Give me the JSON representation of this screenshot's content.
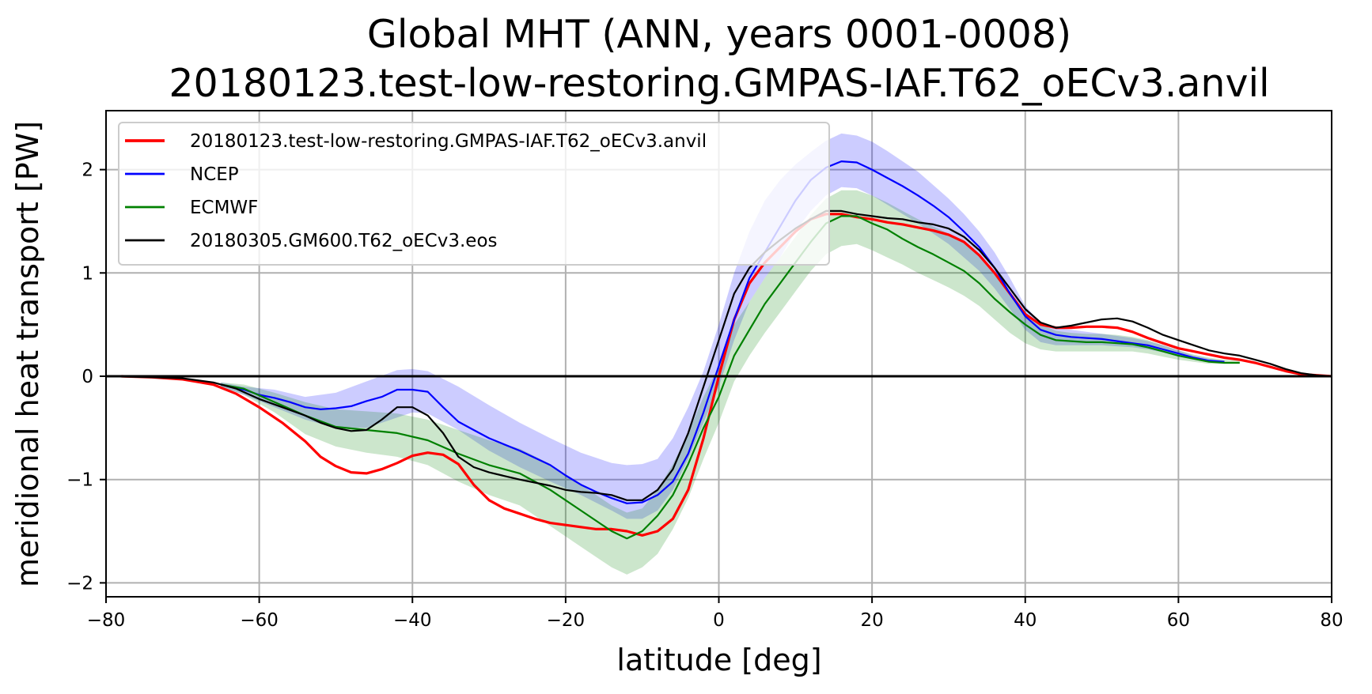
{
  "chart_data": {
    "type": "line",
    "title": "Global MHT (ANN, years 0001-0008)",
    "subtitle": "20180123.test-low-restoring.GMPAS-IAF.T62_oECv3.anvil",
    "xlabel": "latitude [deg]",
    "ylabel": "meridional heat transport [PW]",
    "xlim": [
      -80,
      80
    ],
    "ylim": [
      -2.15,
      2.6
    ],
    "xticks": [
      -80,
      -60,
      -40,
      -20,
      0,
      20,
      40,
      60,
      80
    ],
    "xtick_labels": [
      "−80",
      "−60",
      "−40",
      "−20",
      "0",
      "20",
      "40",
      "60",
      "80"
    ],
    "yticks": [
      -2,
      -1,
      0,
      1,
      2
    ],
    "ytick_labels": [
      "−2",
      "−1",
      "0",
      "1",
      "2"
    ],
    "grid": true,
    "zero_line": true,
    "legend_position": "top-left",
    "bands": [
      {
        "name": "NCEP uncertainty",
        "color": "#0000ff",
        "opacity": 0.2,
        "x": [
          -65,
          -62,
          -58,
          -54,
          -50,
          -46,
          -42,
          -40,
          -38,
          -34,
          -30,
          -26,
          -22,
          -18,
          -14,
          -12,
          -10,
          -8,
          -6,
          -4,
          -2,
          0,
          2,
          4,
          6,
          8,
          10,
          12,
          14,
          16,
          18,
          20,
          22,
          24,
          26,
          28,
          30,
          32,
          34,
          36,
          38,
          40,
          42,
          44,
          46,
          48,
          50,
          52,
          54,
          56,
          58,
          60,
          62,
          64,
          66
        ],
        "lower": [
          -0.1,
          -0.18,
          -0.3,
          -0.42,
          -0.5,
          -0.5,
          -0.4,
          -0.35,
          -0.36,
          -0.52,
          -0.72,
          -0.88,
          -1.02,
          -1.15,
          -1.3,
          -1.38,
          -1.38,
          -1.3,
          -1.1,
          -0.8,
          -0.45,
          -0.1,
          0.35,
          0.72,
          0.95,
          1.15,
          1.4,
          1.6,
          1.75,
          1.83,
          1.82,
          1.75,
          1.66,
          1.57,
          1.48,
          1.38,
          1.28,
          1.15,
          1.02,
          0.85,
          0.65,
          0.45,
          0.33,
          0.3,
          0.3,
          0.3,
          0.3,
          0.29,
          0.28,
          0.26,
          0.23,
          0.19,
          0.16,
          0.14,
          0.13
        ],
        "upper": [
          -0.06,
          -0.1,
          -0.13,
          -0.2,
          -0.16,
          -0.05,
          0.06,
          0.07,
          0.05,
          -0.1,
          -0.28,
          -0.45,
          -0.6,
          -0.74,
          -0.84,
          -0.86,
          -0.85,
          -0.8,
          -0.6,
          -0.3,
          0.05,
          0.5,
          1.0,
          1.4,
          1.7,
          1.9,
          2.05,
          2.17,
          2.28,
          2.35,
          2.33,
          2.27,
          2.18,
          2.08,
          1.98,
          1.85,
          1.72,
          1.57,
          1.4,
          1.2,
          0.95,
          0.68,
          0.52,
          0.47,
          0.45,
          0.43,
          0.41,
          0.39,
          0.37,
          0.34,
          0.3,
          0.25,
          0.2,
          0.17,
          0.15
        ]
      },
      {
        "name": "ECMWF uncertainty",
        "color": "#008000",
        "opacity": 0.2,
        "x": [
          -65,
          -62,
          -58,
          -54,
          -50,
          -46,
          -42,
          -38,
          -34,
          -30,
          -26,
          -22,
          -18,
          -14,
          -12,
          -10,
          -8,
          -6,
          -4,
          -2,
          0,
          2,
          4,
          6,
          8,
          10,
          12,
          14,
          16,
          18,
          20,
          22,
          24,
          26,
          28,
          30,
          32,
          34,
          36,
          38,
          40,
          42,
          44,
          46,
          48,
          50,
          52,
          54,
          56,
          58,
          60,
          62,
          64,
          66,
          68
        ],
        "lower": [
          -0.1,
          -0.18,
          -0.35,
          -0.56,
          -0.68,
          -0.74,
          -0.78,
          -0.86,
          -1.02,
          -1.15,
          -1.25,
          -1.45,
          -1.65,
          -1.85,
          -1.92,
          -1.85,
          -1.72,
          -1.48,
          -1.18,
          -0.8,
          -0.45,
          -0.05,
          0.2,
          0.42,
          0.62,
          0.82,
          1.02,
          1.18,
          1.26,
          1.28,
          1.22,
          1.15,
          1.08,
          1.0,
          0.93,
          0.86,
          0.78,
          0.68,
          0.55,
          0.42,
          0.32,
          0.26,
          0.24,
          0.24,
          0.24,
          0.24,
          0.24,
          0.24,
          0.22,
          0.19,
          0.16,
          0.14,
          0.12,
          0.12,
          0.12
        ],
        "upper": [
          -0.06,
          -0.08,
          -0.16,
          -0.25,
          -0.32,
          -0.34,
          -0.36,
          -0.42,
          -0.52,
          -0.62,
          -0.7,
          -0.85,
          -1.05,
          -1.25,
          -1.32,
          -1.28,
          -1.1,
          -0.85,
          -0.55,
          -0.2,
          0.1,
          0.5,
          0.72,
          0.95,
          1.15,
          1.35,
          1.56,
          1.72,
          1.8,
          1.8,
          1.75,
          1.68,
          1.6,
          1.52,
          1.45,
          1.38,
          1.3,
          1.15,
          0.98,
          0.8,
          0.62,
          0.5,
          0.44,
          0.42,
          0.41,
          0.41,
          0.4,
          0.38,
          0.35,
          0.3,
          0.25,
          0.21,
          0.18,
          0.16,
          0.15
        ]
      }
    ],
    "series": [
      {
        "name": "20180123.test-low-restoring.GMPAS-IAF.T62_oECv3.anvil",
        "color": "#ff0000",
        "width": 3.2,
        "x": [
          -78,
          -74,
          -70,
          -66,
          -63,
          -60,
          -57,
          -54,
          -52,
          -50,
          -48,
          -46,
          -44,
          -42,
          -40,
          -38,
          -36,
          -34,
          -32,
          -30,
          -28,
          -26,
          -24,
          -22,
          -20,
          -18,
          -16,
          -14,
          -12,
          -10,
          -8,
          -6,
          -4,
          -2,
          0,
          2,
          4,
          6,
          8,
          10,
          12,
          14,
          16,
          18,
          20,
          22,
          24,
          26,
          28,
          30,
          32,
          34,
          36,
          38,
          40,
          42,
          44,
          46,
          48,
          50,
          52,
          54,
          56,
          58,
          60,
          62,
          64,
          66,
          68,
          70,
          72,
          74,
          76,
          78,
          80
        ],
        "y": [
          0,
          -0.01,
          -0.03,
          -0.08,
          -0.17,
          -0.3,
          -0.45,
          -0.63,
          -0.78,
          -0.87,
          -0.93,
          -0.94,
          -0.9,
          -0.84,
          -0.77,
          -0.74,
          -0.76,
          -0.85,
          -1.05,
          -1.2,
          -1.28,
          -1.33,
          -1.38,
          -1.42,
          -1.44,
          -1.46,
          -1.48,
          -1.48,
          -1.5,
          -1.54,
          -1.5,
          -1.38,
          -1.1,
          -0.6,
          0.0,
          0.55,
          0.9,
          1.1,
          1.25,
          1.4,
          1.52,
          1.57,
          1.57,
          1.54,
          1.52,
          1.49,
          1.47,
          1.44,
          1.41,
          1.37,
          1.3,
          1.17,
          1.0,
          0.8,
          0.6,
          0.5,
          0.47,
          0.47,
          0.48,
          0.48,
          0.47,
          0.43,
          0.37,
          0.32,
          0.27,
          0.24,
          0.21,
          0.18,
          0.16,
          0.13,
          0.09,
          0.05,
          0.02,
          0.01,
          0
        ]
      },
      {
        "name": "NCEP",
        "color": "#0000ff",
        "width": 2.2,
        "x": [
          -65,
          -62,
          -60,
          -58,
          -56,
          -54,
          -52,
          -50,
          -48,
          -46,
          -44,
          -42,
          -40,
          -38,
          -36,
          -34,
          -32,
          -30,
          -28,
          -26,
          -24,
          -22,
          -20,
          -18,
          -16,
          -14,
          -12,
          -10,
          -8,
          -6,
          -4,
          -2,
          0,
          2,
          4,
          6,
          8,
          10,
          12,
          14,
          16,
          18,
          20,
          22,
          24,
          26,
          28,
          30,
          32,
          34,
          36,
          38,
          40,
          42,
          44,
          46,
          48,
          50,
          52,
          54,
          56,
          58,
          60,
          62,
          64,
          66
        ],
        "y": [
          -0.08,
          -0.13,
          -0.18,
          -0.21,
          -0.25,
          -0.3,
          -0.32,
          -0.31,
          -0.29,
          -0.24,
          -0.2,
          -0.13,
          -0.13,
          -0.15,
          -0.3,
          -0.44,
          -0.52,
          -0.6,
          -0.66,
          -0.72,
          -0.79,
          -0.86,
          -0.96,
          -1.05,
          -1.12,
          -1.18,
          -1.23,
          -1.22,
          -1.15,
          -1.02,
          -0.75,
          -0.35,
          0.1,
          0.55,
          0.95,
          1.2,
          1.45,
          1.7,
          1.9,
          2.02,
          2.08,
          2.07,
          2.0,
          1.92,
          1.84,
          1.75,
          1.65,
          1.54,
          1.4,
          1.25,
          1.05,
          0.8,
          0.58,
          0.45,
          0.4,
          0.38,
          0.37,
          0.36,
          0.34,
          0.32,
          0.3,
          0.26,
          0.22,
          0.18,
          0.15,
          0.14
        ]
      },
      {
        "name": "ECMWF",
        "color": "#008000",
        "width": 2.2,
        "x": [
          -65,
          -62,
          -58,
          -54,
          -50,
          -46,
          -42,
          -38,
          -34,
          -30,
          -26,
          -22,
          -18,
          -14,
          -12,
          -10,
          -8,
          -6,
          -4,
          -2,
          0,
          2,
          4,
          6,
          8,
          10,
          12,
          14,
          16,
          18,
          20,
          22,
          24,
          26,
          28,
          30,
          32,
          34,
          36,
          38,
          40,
          42,
          44,
          46,
          48,
          50,
          52,
          54,
          56,
          58,
          60,
          62,
          64,
          66,
          68
        ],
        "y": [
          -0.08,
          -0.12,
          -0.25,
          -0.38,
          -0.49,
          -0.52,
          -0.55,
          -0.62,
          -0.75,
          -0.86,
          -0.94,
          -1.1,
          -1.3,
          -1.5,
          -1.57,
          -1.5,
          -1.35,
          -1.15,
          -0.85,
          -0.5,
          -0.2,
          0.2,
          0.45,
          0.7,
          0.9,
          1.1,
          1.3,
          1.48,
          1.55,
          1.55,
          1.48,
          1.42,
          1.33,
          1.25,
          1.18,
          1.1,
          1.02,
          0.9,
          0.75,
          0.62,
          0.5,
          0.4,
          0.35,
          0.34,
          0.33,
          0.33,
          0.32,
          0.31,
          0.28,
          0.24,
          0.2,
          0.17,
          0.14,
          0.13,
          0.13
        ]
      },
      {
        "name": "20180305.GM600.T62_oECv3.eos",
        "color": "#000000",
        "width": 2.2,
        "x": [
          -80,
          -74,
          -70,
          -66,
          -63,
          -60,
          -57,
          -54,
          -52,
          -50,
          -48,
          -46,
          -44,
          -42,
          -40,
          -38,
          -36,
          -34,
          -32,
          -30,
          -26,
          -22,
          -20,
          -18,
          -16,
          -14,
          -12,
          -10,
          -8,
          -6,
          -4,
          -2,
          0,
          2,
          4,
          6,
          8,
          10,
          12,
          14,
          16,
          18,
          20,
          22,
          24,
          26,
          28,
          30,
          32,
          34,
          36,
          38,
          40,
          42,
          44,
          46,
          48,
          50,
          52,
          54,
          56,
          58,
          60,
          62,
          64,
          66,
          68,
          70,
          72,
          74,
          76,
          78,
          80
        ],
        "y": [
          0,
          -0.01,
          -0.02,
          -0.06,
          -0.12,
          -0.22,
          -0.3,
          -0.38,
          -0.45,
          -0.5,
          -0.53,
          -0.52,
          -0.42,
          -0.3,
          -0.3,
          -0.38,
          -0.55,
          -0.78,
          -0.88,
          -0.93,
          -1.0,
          -1.06,
          -1.1,
          -1.12,
          -1.13,
          -1.15,
          -1.2,
          -1.2,
          -1.1,
          -0.9,
          -0.55,
          -0.1,
          0.35,
          0.8,
          1.05,
          1.2,
          1.32,
          1.43,
          1.52,
          1.6,
          1.6,
          1.57,
          1.55,
          1.53,
          1.52,
          1.49,
          1.47,
          1.43,
          1.35,
          1.22,
          1.05,
          0.85,
          0.65,
          0.52,
          0.47,
          0.49,
          0.52,
          0.55,
          0.56,
          0.53,
          0.47,
          0.4,
          0.35,
          0.3,
          0.25,
          0.22,
          0.2,
          0.16,
          0.12,
          0.07,
          0.03,
          0.01,
          0
        ]
      }
    ]
  }
}
